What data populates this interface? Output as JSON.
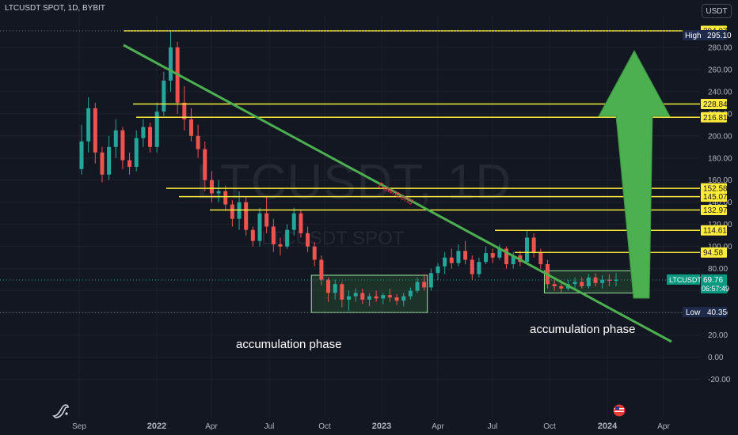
{
  "header": {
    "symbol_line": "LTCUSDT SPOT, 1D, BYBIT",
    "currency": "USDT"
  },
  "watermark": {
    "main": "LTCUSDT, 1D",
    "sub": "LTCUSDT SPOT"
  },
  "annotations": {
    "downtrend_label": "Downtrend",
    "accumulation_left": "accumulation phase",
    "accumulation_right": "accumulation phase"
  },
  "chart_data": {
    "type": "candlestick",
    "symbol": "LTCUSDT",
    "timeframe": "1D",
    "exchange": "BYBIT",
    "y_axis": {
      "range": [
        -25,
        310
      ],
      "ticks": [
        -20,
        0,
        20,
        40,
        60,
        80,
        100,
        120,
        140,
        160,
        180,
        200,
        220,
        240,
        260,
        280
      ],
      "tick_labels": [
        "-20.00",
        "0.00",
        "20.00",
        "40.00",
        "60.00",
        "80.00",
        "100.00",
        "120.00",
        "140.00",
        "160.00",
        "180.00",
        "200.00",
        "220.00",
        "240.00",
        "260.00",
        "280.00"
      ]
    },
    "x_axis": {
      "ticks": [
        "Sep",
        "2022",
        "Apr",
        "Jul",
        "Oct",
        "2023",
        "Apr",
        "Jul",
        "Oct",
        "2024",
        "Apr"
      ]
    },
    "high": {
      "label": "High",
      "value": "295.10"
    },
    "low": {
      "label": "Low",
      "value": "40.35"
    },
    "current": {
      "label": "LTCUSDT",
      "value": "69.76",
      "countdown": "06:57:49"
    },
    "resistance_levels": [
      {
        "value": 294.97,
        "label": "294.97"
      },
      {
        "value": 228.84,
        "label": "228.84"
      },
      {
        "value": 216.81,
        "label": "216.81"
      },
      {
        "value": 152.58,
        "label": "152.58"
      },
      {
        "value": 145.07,
        "label": "145.07"
      },
      {
        "value": 132.97,
        "label": "132.97"
      },
      {
        "value": 114.61,
        "label": "114.61"
      },
      {
        "value": 94.58,
        "label": "94.58"
      }
    ],
    "candles": [
      {
        "o": 170,
        "h": 210,
        "l": 165,
        "c": 195
      },
      {
        "o": 195,
        "h": 235,
        "l": 185,
        "c": 225
      },
      {
        "o": 225,
        "h": 230,
        "l": 175,
        "c": 185
      },
      {
        "o": 185,
        "h": 190,
        "l": 158,
        "c": 165
      },
      {
        "o": 165,
        "h": 200,
        "l": 160,
        "c": 190
      },
      {
        "o": 190,
        "h": 215,
        "l": 180,
        "c": 205
      },
      {
        "o": 205,
        "h": 208,
        "l": 170,
        "c": 178
      },
      {
        "o": 178,
        "h": 185,
        "l": 165,
        "c": 172
      },
      {
        "o": 172,
        "h": 205,
        "l": 168,
        "c": 198
      },
      {
        "o": 198,
        "h": 215,
        "l": 190,
        "c": 208
      },
      {
        "o": 208,
        "h": 212,
        "l": 185,
        "c": 190
      },
      {
        "o": 190,
        "h": 230,
        "l": 185,
        "c": 222
      },
      {
        "o": 222,
        "h": 258,
        "l": 218,
        "c": 250
      },
      {
        "o": 250,
        "h": 295,
        "l": 240,
        "c": 280
      },
      {
        "o": 280,
        "h": 285,
        "l": 220,
        "c": 230
      },
      {
        "o": 230,
        "h": 245,
        "l": 205,
        "c": 215
      },
      {
        "o": 215,
        "h": 225,
        "l": 195,
        "c": 200
      },
      {
        "o": 200,
        "h": 210,
        "l": 180,
        "c": 188
      },
      {
        "o": 188,
        "h": 195,
        "l": 150,
        "c": 160
      },
      {
        "o": 160,
        "h": 168,
        "l": 140,
        "c": 148
      },
      {
        "o": 148,
        "h": 160,
        "l": 140,
        "c": 150
      },
      {
        "o": 150,
        "h": 155,
        "l": 132,
        "c": 138
      },
      {
        "o": 138,
        "h": 142,
        "l": 118,
        "c": 125
      },
      {
        "o": 125,
        "h": 150,
        "l": 115,
        "c": 140
      },
      {
        "o": 140,
        "h": 145,
        "l": 110,
        "c": 115
      },
      {
        "o": 115,
        "h": 118,
        "l": 100,
        "c": 105
      },
      {
        "o": 105,
        "h": 135,
        "l": 100,
        "c": 130
      },
      {
        "o": 130,
        "h": 145,
        "l": 112,
        "c": 118
      },
      {
        "o": 118,
        "h": 125,
        "l": 95,
        "c": 102
      },
      {
        "o": 102,
        "h": 108,
        "l": 92,
        "c": 100
      },
      {
        "o": 100,
        "h": 120,
        "l": 98,
        "c": 115
      },
      {
        "o": 115,
        "h": 135,
        "l": 110,
        "c": 130
      },
      {
        "o": 130,
        "h": 133,
        "l": 108,
        "c": 112
      },
      {
        "o": 112,
        "h": 118,
        "l": 95,
        "c": 100
      },
      {
        "o": 100,
        "h": 104,
        "l": 82,
        "c": 88
      },
      {
        "o": 88,
        "h": 92,
        "l": 65,
        "c": 70
      },
      {
        "o": 70,
        "h": 72,
        "l": 50,
        "c": 58
      },
      {
        "o": 58,
        "h": 70,
        "l": 52,
        "c": 66
      },
      {
        "o": 66,
        "h": 68,
        "l": 45,
        "c": 52
      },
      {
        "o": 52,
        "h": 60,
        "l": 42,
        "c": 55
      },
      {
        "o": 55,
        "h": 62,
        "l": 50,
        "c": 58
      },
      {
        "o": 58,
        "h": 62,
        "l": 48,
        "c": 52
      },
      {
        "o": 52,
        "h": 58,
        "l": 46,
        "c": 55
      },
      {
        "o": 55,
        "h": 60,
        "l": 50,
        "c": 53
      },
      {
        "o": 53,
        "h": 58,
        "l": 48,
        "c": 56
      },
      {
        "o": 56,
        "h": 62,
        "l": 50,
        "c": 54
      },
      {
        "o": 54,
        "h": 57,
        "l": 47,
        "c": 51
      },
      {
        "o": 51,
        "h": 58,
        "l": 46,
        "c": 55
      },
      {
        "o": 55,
        "h": 63,
        "l": 52,
        "c": 60
      },
      {
        "o": 60,
        "h": 72,
        "l": 58,
        "c": 68
      },
      {
        "o": 68,
        "h": 75,
        "l": 60,
        "c": 63
      },
      {
        "o": 63,
        "h": 80,
        "l": 60,
        "c": 76
      },
      {
        "o": 76,
        "h": 85,
        "l": 70,
        "c": 82
      },
      {
        "o": 82,
        "h": 95,
        "l": 75,
        "c": 90
      },
      {
        "o": 90,
        "h": 98,
        "l": 80,
        "c": 85
      },
      {
        "o": 85,
        "h": 102,
        "l": 82,
        "c": 96
      },
      {
        "o": 96,
        "h": 105,
        "l": 84,
        "c": 88
      },
      {
        "o": 88,
        "h": 92,
        "l": 70,
        "c": 75
      },
      {
        "o": 75,
        "h": 90,
        "l": 72,
        "c": 86
      },
      {
        "o": 86,
        "h": 100,
        "l": 84,
        "c": 94
      },
      {
        "o": 94,
        "h": 98,
        "l": 85,
        "c": 90
      },
      {
        "o": 90,
        "h": 102,
        "l": 88,
        "c": 98
      },
      {
        "o": 98,
        "h": 100,
        "l": 80,
        "c": 84
      },
      {
        "o": 84,
        "h": 95,
        "l": 80,
        "c": 92
      },
      {
        "o": 92,
        "h": 96,
        "l": 82,
        "c": 86
      },
      {
        "o": 86,
        "h": 115,
        "l": 84,
        "c": 108
      },
      {
        "o": 108,
        "h": 112,
        "l": 90,
        "c": 95
      },
      {
        "o": 95,
        "h": 98,
        "l": 80,
        "c": 84
      },
      {
        "o": 84,
        "h": 88,
        "l": 62,
        "c": 66
      },
      {
        "o": 66,
        "h": 70,
        "l": 60,
        "c": 64
      },
      {
        "o": 64,
        "h": 68,
        "l": 58,
        "c": 62
      },
      {
        "o": 62,
        "h": 70,
        "l": 60,
        "c": 66
      },
      {
        "o": 66,
        "h": 72,
        "l": 62,
        "c": 68
      },
      {
        "o": 68,
        "h": 72,
        "l": 62,
        "c": 64
      },
      {
        "o": 64,
        "h": 75,
        "l": 62,
        "c": 72
      },
      {
        "o": 72,
        "h": 76,
        "l": 64,
        "c": 67
      },
      {
        "o": 67,
        "h": 74,
        "l": 62,
        "c": 70
      },
      {
        "o": 70,
        "h": 75,
        "l": 64,
        "c": 69
      },
      {
        "o": 69,
        "h": 76,
        "l": 64,
        "c": 70
      }
    ],
    "accumulation_zones": [
      {
        "start": 34,
        "end": 50,
        "low": 40.35,
        "high": 74
      },
      {
        "start": 68,
        "end": 80,
        "low": 58,
        "high": 78
      }
    ]
  }
}
